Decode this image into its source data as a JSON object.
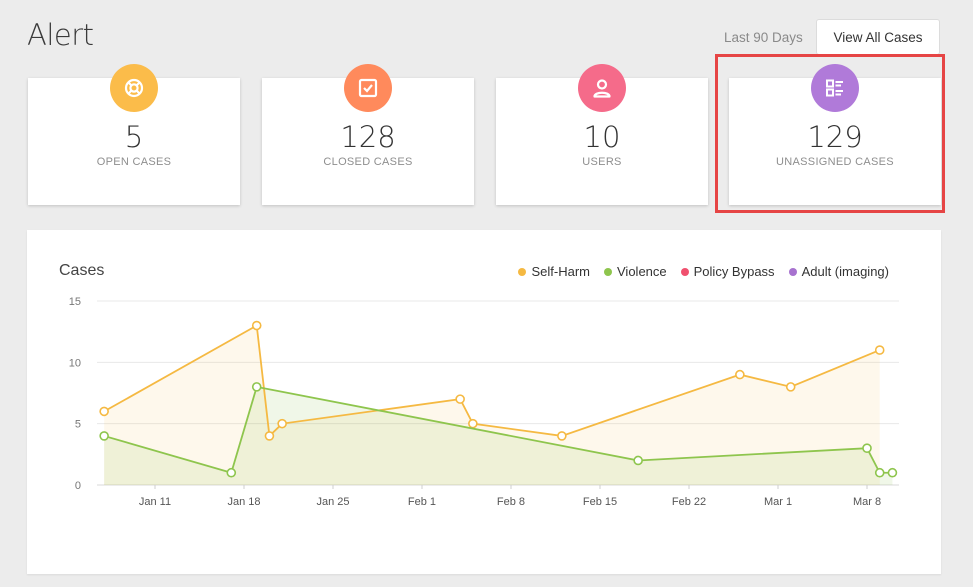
{
  "header": {
    "title": "Alert",
    "range_label": "Last 90 Days",
    "view_all_label": "View All Cases"
  },
  "stats": [
    {
      "value": "5",
      "label": "OPEN CASES",
      "color": "#fbbc4a",
      "icon": "lifebuoy-icon"
    },
    {
      "value": "128",
      "label": "CLOSED CASES",
      "color": "#ff8a5c",
      "icon": "checkbox-icon"
    },
    {
      "value": "10",
      "label": "USERS",
      "color": "#f56b8a",
      "icon": "user-icon"
    },
    {
      "value": "129",
      "label": "UNASSIGNED CASES",
      "color": "#b07ad9",
      "icon": "list-icon"
    }
  ],
  "highlight_color": "#e64545",
  "chart": {
    "title": "Cases",
    "legend": [
      {
        "name": "Self-Harm",
        "color": "#f5b942"
      },
      {
        "name": "Violence",
        "color": "#8ec54d"
      },
      {
        "name": "Policy Bypass",
        "color": "#f0506e"
      },
      {
        "name": "Adult (imaging)",
        "color": "#a772cf"
      }
    ]
  },
  "chart_data": {
    "type": "area",
    "title": "Cases",
    "xlabel": "",
    "ylabel": "",
    "ylim": [
      0,
      15
    ],
    "yticks": [
      0,
      5,
      10,
      15
    ],
    "xticks": [
      "Jan 11",
      "Jan 18",
      "Jan 25",
      "Feb 1",
      "Feb 8",
      "Feb 15",
      "Feb 22",
      "Mar 1",
      "Mar 8"
    ],
    "grid": true,
    "legend_position": "top-right",
    "series": [
      {
        "name": "Self-Harm",
        "color": "#f5b942",
        "x": [
          "Jan 7",
          "Jan 19",
          "Jan 20",
          "Jan 21",
          "Feb 4",
          "Feb 5",
          "Feb 12",
          "Feb 26",
          "Mar 2",
          "Mar 9"
        ],
        "y": [
          6,
          13,
          4,
          5,
          7,
          5,
          4,
          9,
          8,
          11
        ]
      },
      {
        "name": "Violence",
        "color": "#8ec54d",
        "x": [
          "Jan 7",
          "Jan 17",
          "Jan 19",
          "Feb 18",
          "Mar 8",
          "Mar 9",
          "Mar 10"
        ],
        "y": [
          4,
          1,
          8,
          2,
          3,
          1,
          1
        ]
      },
      {
        "name": "Policy Bypass",
        "color": "#f0506e",
        "x": [],
        "y": []
      },
      {
        "name": "Adult (imaging)",
        "color": "#a772cf",
        "x": [],
        "y": []
      }
    ]
  }
}
